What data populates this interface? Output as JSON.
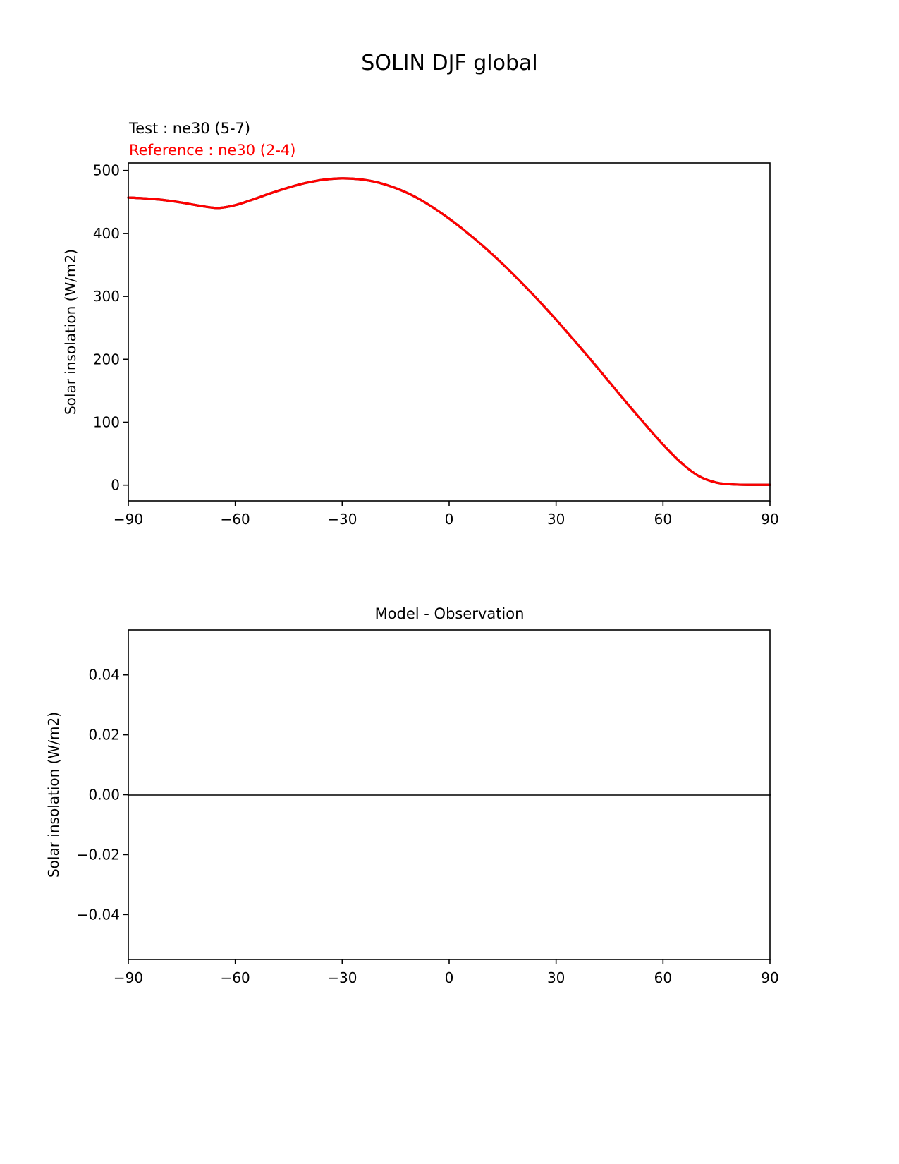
{
  "figure": {
    "title": "SOLIN DJF global"
  },
  "chart_data": [
    {
      "type": "line",
      "title": "",
      "xlabel": "",
      "ylabel": "Solar insolation (W/m2)",
      "xlim": [
        -90,
        90
      ],
      "ylim": [
        -25,
        512
      ],
      "xticks": [
        -90,
        -60,
        -30,
        0,
        30,
        60,
        90
      ],
      "xtick_labels": [
        "−90",
        "−60",
        "−30",
        "0",
        "30",
        "60",
        "90"
      ],
      "yticks": [
        0,
        100,
        200,
        300,
        400,
        500
      ],
      "ytick_labels": [
        "0",
        "100",
        "200",
        "300",
        "400",
        "500"
      ],
      "grid": false,
      "legend_position": "above-plot-left",
      "x": [
        -90,
        -85,
        -80,
        -75,
        -70,
        -65,
        -60,
        -55,
        -50,
        -45,
        -40,
        -35,
        -30,
        -25,
        -20,
        -15,
        -10,
        -5,
        0,
        5,
        10,
        15,
        20,
        25,
        30,
        35,
        40,
        45,
        50,
        55,
        60,
        65,
        70,
        75,
        80,
        85,
        90
      ],
      "series": [
        {
          "name": "Test : ne30 (5-7)",
          "color": "#000000",
          "linewidth": 3.2,
          "values": [
            457,
            455.5,
            453,
            449,
            444,
            440.5,
            445,
            454,
            464,
            473,
            480.5,
            485.5,
            487.5,
            486,
            481,
            472,
            459.5,
            443,
            423.5,
            401.5,
            377.5,
            351.5,
            323.5,
            294,
            263,
            230.5,
            197.5,
            163.5,
            129.5,
            96.5,
            64.5,
            36,
            14.5,
            4,
            1,
            0.5,
            0.5
          ]
        },
        {
          "name": "Reference : ne30 (2-4)",
          "color": "#ff0000",
          "linewidth": 3.2,
          "values": [
            457,
            455.5,
            453,
            449,
            444,
            440.5,
            445,
            454,
            464,
            473,
            480.5,
            485.5,
            487.5,
            486,
            481,
            472,
            459.5,
            443,
            423.5,
            401.5,
            377.5,
            351.5,
            323.5,
            294,
            263,
            230.5,
            197.5,
            163.5,
            129.5,
            96.5,
            64.5,
            36,
            14.5,
            4,
            1,
            0.5,
            0.5
          ]
        }
      ]
    },
    {
      "type": "line",
      "title": "Model - Observation",
      "xlabel": "",
      "ylabel": "Solar insolation (W/m2)",
      "xlim": [
        -90,
        90
      ],
      "ylim": [
        -0.055,
        0.055
      ],
      "xticks": [
        -90,
        -60,
        -30,
        0,
        30,
        60,
        90
      ],
      "xtick_labels": [
        "−90",
        "−60",
        "−30",
        "0",
        "30",
        "60",
        "90"
      ],
      "yticks": [
        -0.04,
        -0.02,
        0,
        0.02,
        0.04
      ],
      "ytick_labels": [
        "−0.04",
        "−0.02",
        "0.00",
        "0.02",
        "0.04"
      ],
      "grid": false,
      "x": [
        -90,
        90
      ],
      "series": [
        {
          "name": "Model - Observation difference",
          "color": "#3f3f3f",
          "linewidth": 3,
          "values": [
            0,
            0
          ]
        }
      ]
    }
  ]
}
